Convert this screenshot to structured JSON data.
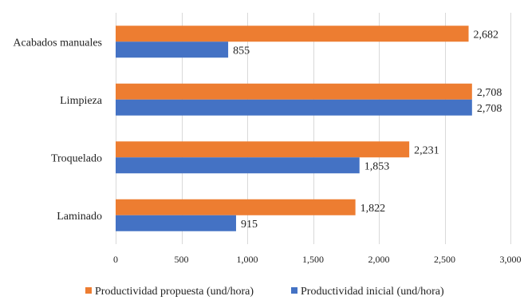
{
  "chart_data": {
    "type": "bar",
    "orientation": "horizontal",
    "categories": [
      "Acabados manuales",
      "Limpieza",
      "Troquelado",
      "Laminado"
    ],
    "series": [
      {
        "name": "Productividad propuesta (und/hora)",
        "color": "#ED7D31",
        "values": [
          2682,
          2708,
          2231,
          1822
        ],
        "labels": [
          "2,682",
          "2,708",
          "2,231",
          "1,822"
        ]
      },
      {
        "name": "Productividad inicial (und/hora)",
        "color": "#4472C4",
        "values": [
          855,
          2708,
          1853,
          915
        ],
        "labels": [
          "855",
          "2,708",
          "1,853",
          "915"
        ]
      }
    ],
    "xlim": [
      0,
      3000
    ],
    "xticks": [
      0,
      500,
      1000,
      1500,
      2000,
      2500,
      3000
    ],
    "xtick_labels": [
      "0",
      "500",
      "1,000",
      "1,500",
      "2,000",
      "2,500",
      "3,000"
    ],
    "grid": true,
    "legend": "bottom"
  }
}
